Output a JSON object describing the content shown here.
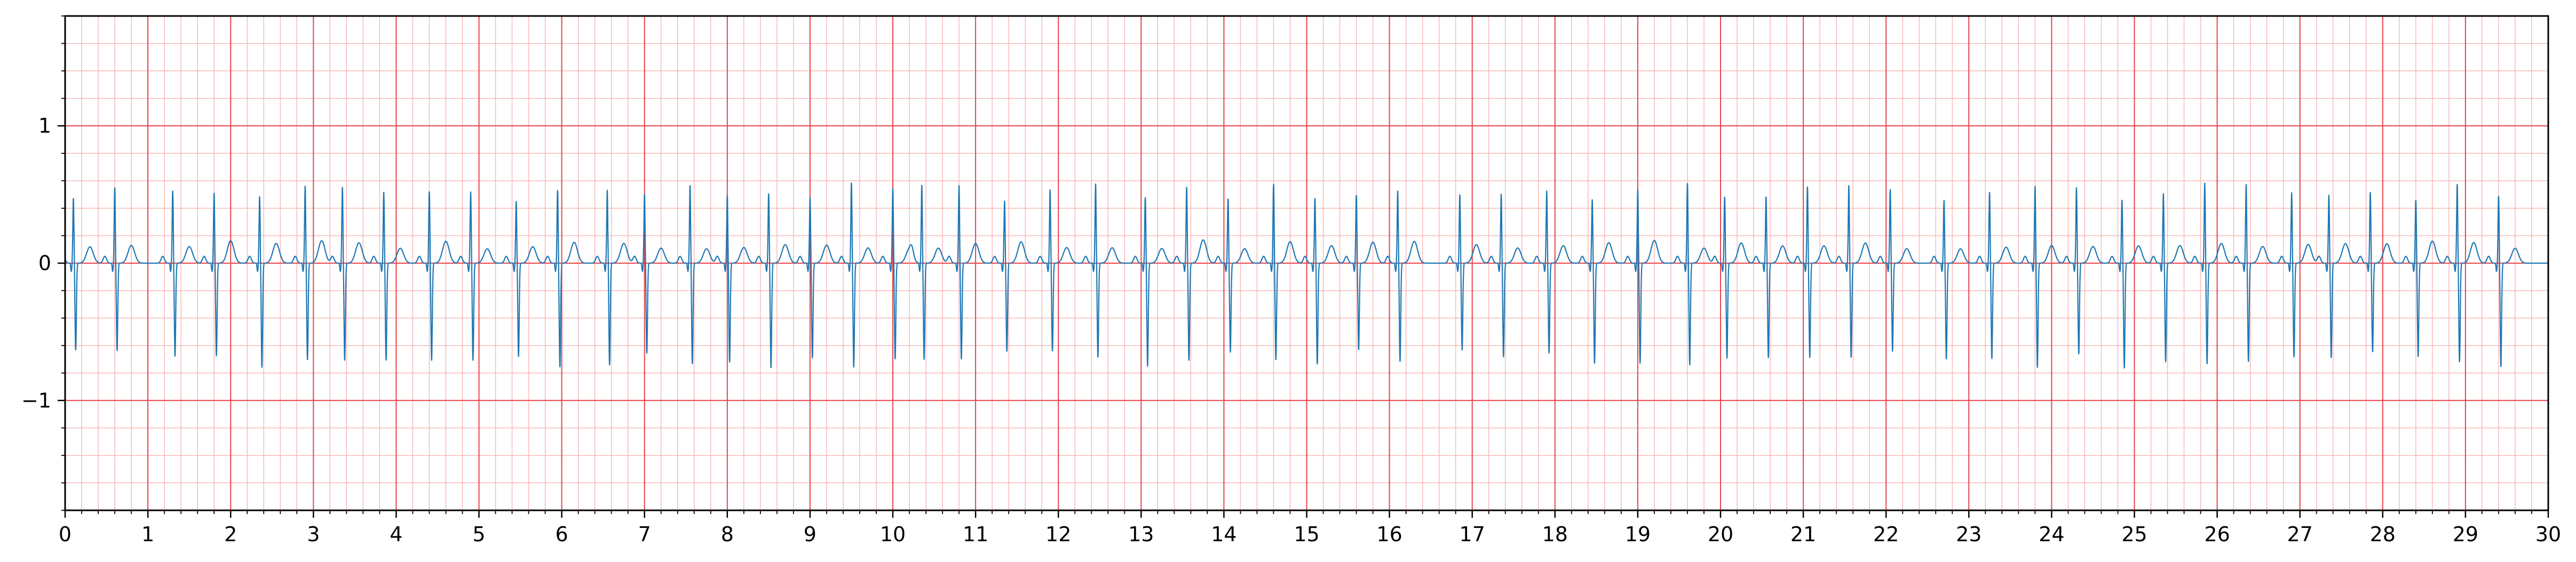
{
  "chart_data": {
    "type": "line",
    "title": "",
    "xlabel": "",
    "ylabel": "",
    "xlim": [
      0,
      30
    ],
    "ylim": [
      -1.8,
      1.8
    ],
    "x_ticks": [
      0,
      1,
      2,
      3,
      4,
      5,
      6,
      7,
      8,
      9,
      10,
      11,
      12,
      13,
      14,
      15,
      16,
      17,
      18,
      19,
      20,
      21,
      22,
      23,
      24,
      25,
      26,
      27,
      28,
      29,
      30
    ],
    "x_tick_labels": [
      "0",
      "1",
      "2",
      "3",
      "4",
      "5",
      "6",
      "7",
      "8",
      "9",
      "10",
      "11",
      "12",
      "13",
      "14",
      "15",
      "16",
      "17",
      "18",
      "19",
      "20",
      "21",
      "22",
      "23",
      "24",
      "25",
      "26",
      "27",
      "28",
      "29",
      "30"
    ],
    "y_ticks": [
      -1,
      0,
      1
    ],
    "y_tick_labels": [
      "−1",
      "0",
      "1"
    ],
    "grid": {
      "major_x_step": 1,
      "minor_x_step": 0.2,
      "major_y_step": 1,
      "minor_y_step": 0.2,
      "major_color": "#e8434a",
      "minor_color": "#f8b4b4"
    },
    "line_color": "#1f77b4",
    "series": [
      {
        "beat_times": [
          0.1,
          0.6,
          1.3,
          1.8,
          2.35,
          2.9,
          3.35,
          3.85,
          4.4,
          4.9,
          5.45,
          5.95,
          6.55,
          7.0,
          7.55,
          8.0,
          8.5,
          9.0,
          9.5,
          10.0,
          10.35,
          10.8,
          11.35,
          11.9,
          12.45,
          13.05,
          13.55,
          14.05,
          14.6,
          15.1,
          15.6,
          16.1,
          16.85,
          17.35,
          17.9,
          18.45,
          19.0,
          19.6,
          20.05,
          20.55,
          21.05,
          21.55,
          22.05,
          22.7,
          23.25,
          23.8,
          24.3,
          24.85,
          25.35,
          25.85,
          26.35,
          26.9,
          27.35,
          27.85,
          28.4,
          28.9,
          29.4
        ]
      }
    ]
  }
}
